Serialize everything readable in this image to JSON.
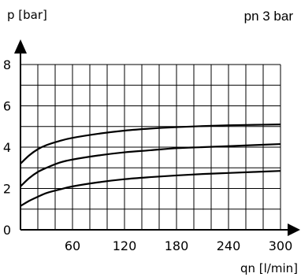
{
  "chart_data": {
    "type": "line",
    "title": "pn 3 bar",
    "ylabel": "p [bar]",
    "xlabel": "qn [l/min]",
    "xlim": [
      0,
      300
    ],
    "ylim": [
      0,
      8
    ],
    "x_ticks": [
      60,
      120,
      180,
      240,
      300
    ],
    "y_ticks": [
      0,
      2,
      4,
      6,
      8
    ],
    "grid": true,
    "series": [
      {
        "x": [
          0,
          10,
          20,
          30,
          45,
          60,
          90,
          120,
          150,
          180,
          210,
          240,
          270,
          300
        ],
        "values": [
          3.2,
          3.6,
          3.9,
          4.1,
          4.3,
          4.45,
          4.65,
          4.8,
          4.9,
          4.97,
          5.02,
          5.06,
          5.08,
          5.1
        ]
      },
      {
        "x": [
          0,
          10,
          20,
          30,
          45,
          60,
          90,
          120,
          150,
          180,
          210,
          240,
          270,
          300
        ],
        "values": [
          2.1,
          2.5,
          2.8,
          3.0,
          3.25,
          3.4,
          3.6,
          3.75,
          3.85,
          3.95,
          4.0,
          4.05,
          4.1,
          4.15
        ]
      },
      {
        "x": [
          0,
          10,
          20,
          30,
          45,
          60,
          90,
          120,
          150,
          180,
          210,
          240,
          270,
          300
        ],
        "values": [
          1.15,
          1.4,
          1.6,
          1.78,
          1.95,
          2.1,
          2.3,
          2.45,
          2.55,
          2.63,
          2.7,
          2.75,
          2.8,
          2.85
        ]
      }
    ]
  }
}
